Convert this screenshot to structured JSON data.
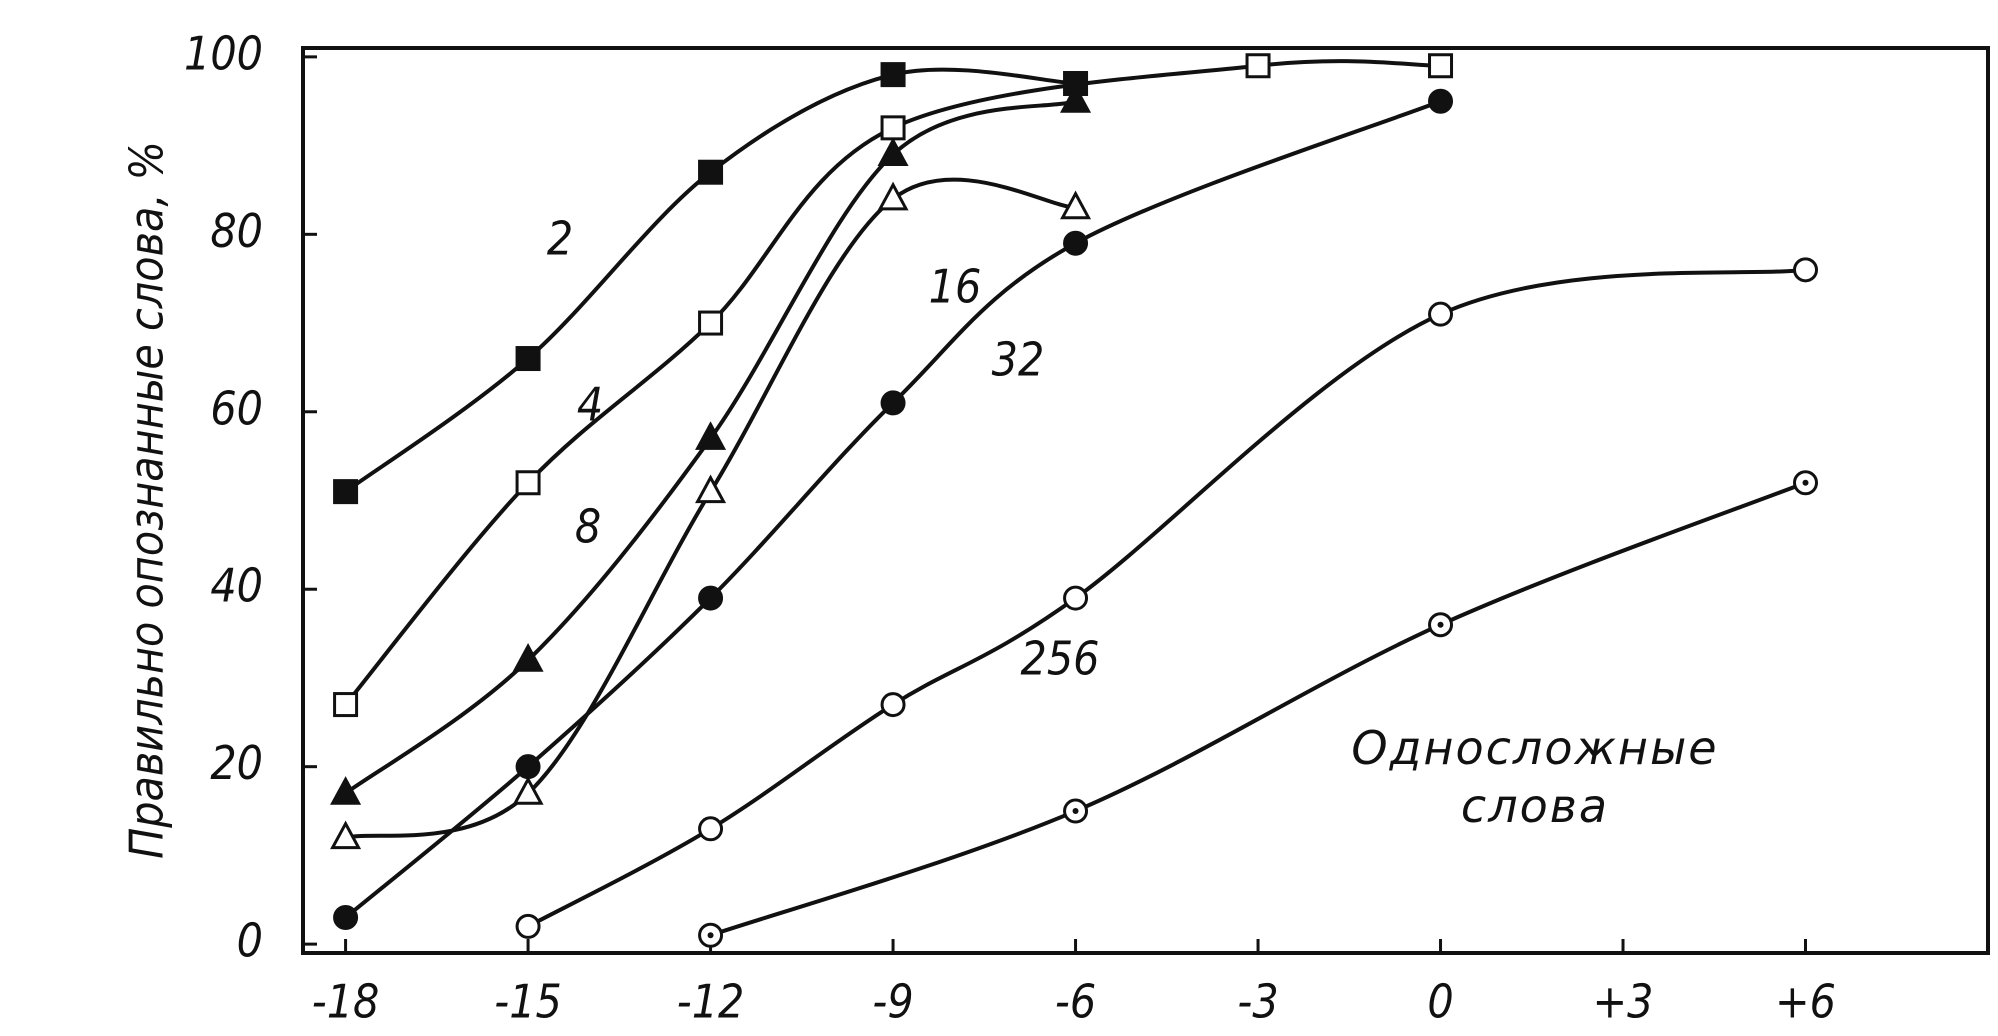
{
  "chart_data": {
    "type": "line",
    "y_label": "Правильно опознанные слова, %",
    "xlim": [
      -18.7,
      9
    ],
    "ylim": [
      -1,
      101
    ],
    "xticks": [
      -18,
      -15,
      -12,
      -9,
      -6,
      -3,
      0,
      {
        "value": 3,
        "label": "+3"
      },
      {
        "value": 6,
        "label": "+6"
      }
    ],
    "yticks": [
      0,
      20,
      40,
      60,
      80,
      100
    ],
    "grid": false,
    "series": [
      {
        "name": "2",
        "color": "#111111",
        "marker": "square-filled",
        "x": [
          -18,
          -15,
          -12,
          -9,
          -6
        ],
        "values": [
          51,
          66,
          87,
          98,
          97
        ]
      },
      {
        "name": "4",
        "color": "#111111",
        "marker": "square-open",
        "x": [
          -18,
          -15,
          -12,
          -9,
          -3,
          0
        ],
        "values": [
          27,
          52,
          70,
          92,
          99,
          99
        ]
      },
      {
        "name": "8",
        "color": "#111111",
        "marker": "triangle-filled",
        "x": [
          -18,
          -15,
          -12,
          -9,
          -6
        ],
        "values": [
          17,
          32,
          57,
          89,
          95
        ]
      },
      {
        "name": "16",
        "color": "#111111",
        "marker": "triangle-open",
        "x": [
          -18,
          -15,
          -12,
          -9,
          -6
        ],
        "values": [
          12,
          17,
          51,
          84,
          83
        ]
      },
      {
        "name": "32",
        "color": "#111111",
        "marker": "circle-filled",
        "x": [
          -18,
          -15,
          -12,
          -9,
          -6,
          0
        ],
        "values": [
          3,
          20,
          39,
          61,
          79,
          95
        ]
      },
      {
        "name": "256",
        "color": "#111111",
        "marker": "circle-open",
        "x": [
          -15,
          -12,
          -9,
          -6,
          0,
          6
        ],
        "values": [
          2,
          13,
          27,
          39,
          71,
          76
        ]
      },
      {
        "name": "Односложные слова",
        "color": "#111111",
        "marker": "circle-dot",
        "x": [
          -12,
          -6,
          0,
          6
        ],
        "values": [
          1,
          15,
          36,
          52
        ]
      }
    ]
  }
}
